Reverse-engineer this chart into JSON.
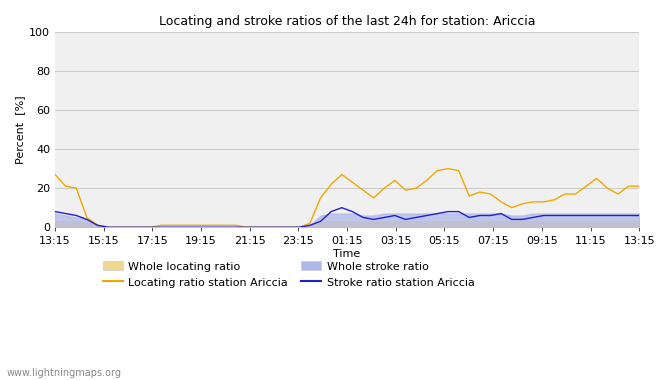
{
  "title": "Locating and stroke ratios of the last 24h for station: Ariccia",
  "ylabel": "Percent  [%]",
  "xlabel": "Time",
  "xlim_labels": [
    "13:15",
    "15:15",
    "17:15",
    "19:15",
    "21:15",
    "23:15",
    "01:15",
    "03:15",
    "05:15",
    "07:15",
    "09:15",
    "11:15",
    "13:15"
  ],
  "ylim": [
    0,
    100
  ],
  "yticks": [
    0,
    20,
    40,
    60,
    80,
    100
  ],
  "background_color": "#ffffff",
  "plot_bg_color": "#f0f0f0",
  "grid_color": "#cccccc",
  "watermark": "www.lightningmaps.org",
  "locating_ratio_station": [
    27,
    21,
    20,
    5,
    1,
    0,
    0,
    0,
    0,
    0,
    1,
    1,
    1,
    1,
    1,
    1,
    1,
    1,
    0,
    0,
    0,
    0,
    0,
    0,
    2,
    15,
    22,
    27,
    23,
    19,
    15,
    20,
    24,
    19,
    20,
    24,
    29,
    30,
    29,
    16,
    18,
    17,
    13,
    10,
    12,
    13,
    13,
    14,
    17,
    17,
    21,
    25,
    20,
    17,
    21,
    21
  ],
  "stroke_ratio_station": [
    8,
    7,
    6,
    4,
    1,
    0,
    0,
    0,
    0,
    0,
    0,
    0,
    0,
    0,
    0,
    0,
    0,
    0,
    0,
    0,
    0,
    0,
    0,
    0,
    1,
    3,
    8,
    10,
    8,
    5,
    4,
    5,
    6,
    4,
    5,
    6,
    7,
    8,
    8,
    5,
    6,
    6,
    7,
    4,
    4,
    5,
    6,
    6,
    6,
    6,
    6,
    6,
    6,
    6,
    6,
    6
  ],
  "whole_locating_ratio": [
    3,
    3,
    3,
    2,
    1,
    0,
    0,
    0,
    0,
    0,
    0,
    0,
    0,
    0,
    0,
    0,
    0,
    0,
    0,
    0,
    0,
    0,
    0,
    0,
    1,
    2,
    3,
    3,
    3,
    3,
    3,
    3,
    3,
    3,
    3,
    3,
    3,
    3,
    3,
    3,
    3,
    3,
    3,
    3,
    3,
    3,
    3,
    3,
    3,
    3,
    3,
    3,
    3,
    3,
    3,
    3
  ],
  "whole_stroke_ratio": [
    7,
    6,
    5,
    4,
    1,
    0,
    0,
    0,
    0,
    0,
    0,
    0,
    0,
    0,
    0,
    0,
    0,
    0,
    0,
    0,
    0,
    0,
    0,
    0,
    1,
    6,
    7,
    7,
    7,
    6,
    6,
    7,
    7,
    7,
    7,
    7,
    7,
    7,
    7,
    7,
    7,
    7,
    7,
    6,
    6,
    7,
    7,
    7,
    7,
    7,
    7,
    7,
    7,
    7,
    7,
    7
  ],
  "color_locating_station": "#f0a800",
  "color_stroke_station": "#2020cc",
  "color_whole_locating": "#f0d890",
  "color_whole_stroke": "#b0b8e8",
  "legend_labels": [
    "Whole locating ratio",
    "Locating ratio station Ariccia",
    "Whole stroke ratio",
    "Stroke ratio station Ariccia"
  ]
}
